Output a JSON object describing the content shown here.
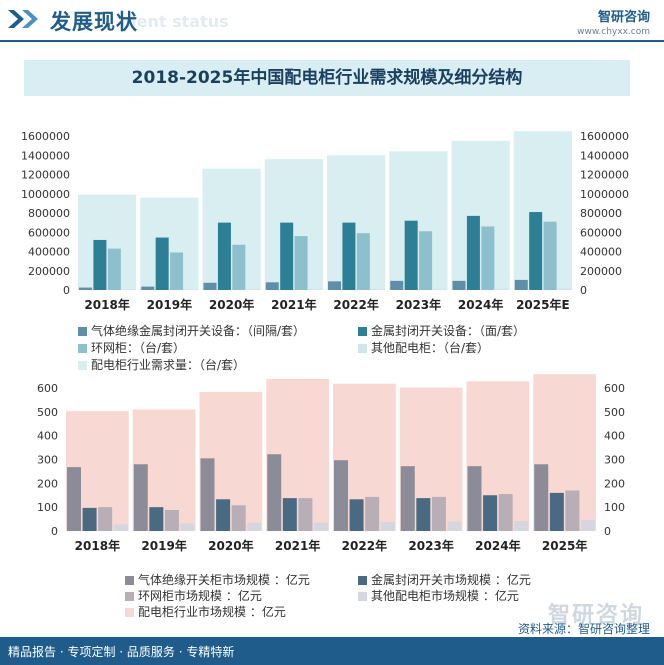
{
  "header": {
    "section_title": "发展现状",
    "section_subtitle": "ment status",
    "brand_name": "智研咨询",
    "brand_url": "www.chyxx.com"
  },
  "main_title": "2018-2025年中国配电柜行业需求规模及细分结构",
  "legend1": [
    "气体绝缘金属封闭开关设备：（间隔/套）",
    "金属封闭开关设备：（面/套）",
    "环网柜：（台/套）",
    "其他配电柜：（台/套）",
    "配电柜行业需求量：（台/套）"
  ],
  "legend2": [
    "气体绝缘开关柜市场规模 ：亿元",
    "金属封闭开关市场规模 ：亿元",
    "环网柜市场规模 ：亿元",
    "其他配电柜市场规模 ：亿元",
    "配电柜行业市场规模 ：亿元"
  ],
  "footer": {
    "left": "精品报告 · 专项定制 · 品质服务 · 专精特新",
    "source": "资料来源：智研咨询整理",
    "watermark": "智研咨询"
  },
  "chart_data": [
    {
      "type": "bar",
      "categories": [
        "2018年",
        "2019年",
        "2020年",
        "2021年",
        "2022年",
        "2023年",
        "2024年",
        "2025年E"
      ],
      "ylim": [
        0,
        1600000
      ],
      "yticks": [
        0,
        200000,
        400000,
        600000,
        800000,
        1000000,
        1200000,
        1400000,
        1600000
      ],
      "total": {
        "name": "配电柜行业需求量：（台/套）",
        "values": [
          990000,
          960000,
          1260000,
          1360000,
          1400000,
          1440000,
          1550000,
          1650000
        ],
        "color": "#d9eef0"
      },
      "series": [
        {
          "name": "气体绝缘金属封闭开关设备：（间隔/套）",
          "values": [
            25000,
            35000,
            75000,
            80000,
            90000,
            95000,
            95000,
            105000
          ],
          "color": "#5f8ea8"
        },
        {
          "name": "金属封闭开关设备：（面/套）",
          "values": [
            520000,
            545000,
            700000,
            700000,
            700000,
            720000,
            770000,
            810000
          ],
          "color": "#2d7f96"
        },
        {
          "name": "环网柜：（台/套）",
          "values": [
            430000,
            390000,
            470000,
            560000,
            590000,
            610000,
            660000,
            710000
          ],
          "color": "#8ebfcc"
        },
        {
          "name": "其他配电柜：（台/套）",
          "values": [
            8000,
            8000,
            10000,
            12000,
            12000,
            13000,
            14000,
            15000
          ],
          "color": "#cfe4ec"
        }
      ]
    },
    {
      "type": "bar",
      "categories": [
        "2018年",
        "2019年",
        "2020年",
        "2021年",
        "2022年",
        "2023年",
        "2024年",
        "2025年"
      ],
      "ylim": [
        0,
        600
      ],
      "yticks": [
        0,
        100,
        200,
        300,
        400,
        500,
        600
      ],
      "total": {
        "name": "配电柜行业市场规模 ：亿元",
        "values": [
          503,
          510,
          583,
          638,
          618,
          602,
          628,
          658
        ],
        "color": "#f8d8d3"
      },
      "series": [
        {
          "name": "气体绝缘开关柜市场规模 ：亿元",
          "values": [
            268,
            280,
            305,
            322,
            297,
            272,
            272,
            280
          ],
          "color": "#8c8c99"
        },
        {
          "name": "金属封闭开关市场规模 ：亿元",
          "values": [
            97,
            100,
            133,
            138,
            133,
            138,
            150,
            160
          ],
          "color": "#4a6a82"
        },
        {
          "name": "环网柜市场规模 ：亿元",
          "values": [
            100,
            88,
            108,
            138,
            143,
            143,
            155,
            170
          ],
          "color": "#b7aeb6"
        },
        {
          "name": "其他配电柜市场规模 ：亿元",
          "values": [
            28,
            32,
            35,
            35,
            38,
            40,
            42,
            47
          ],
          "color": "#d6d6de"
        }
      ]
    }
  ]
}
